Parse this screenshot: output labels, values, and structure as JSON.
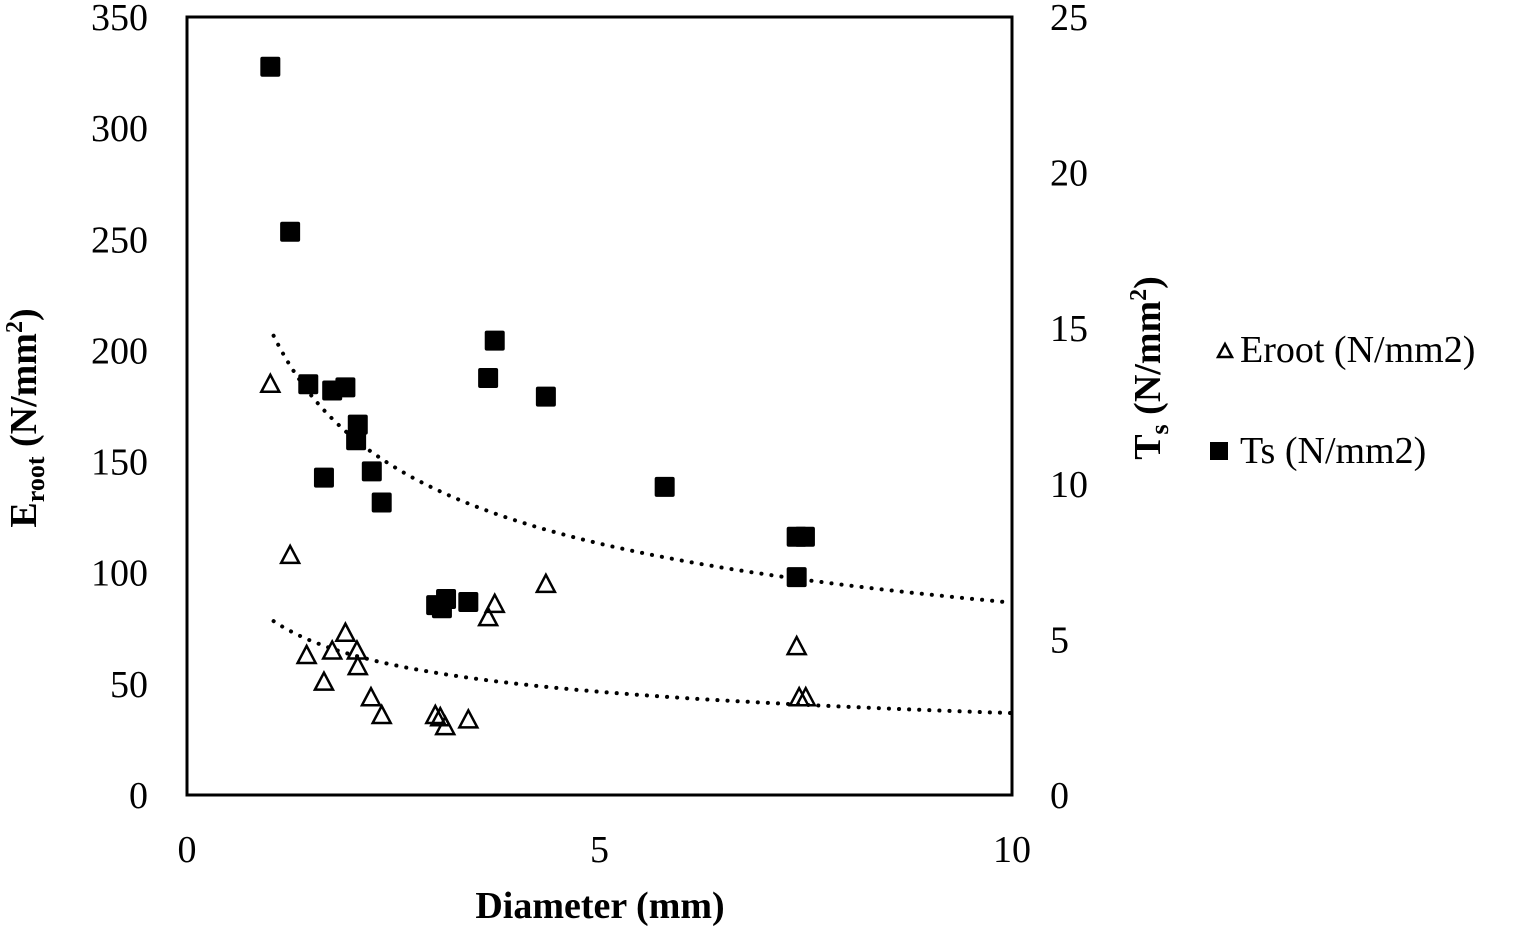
{
  "chart_data": {
    "type": "scatter",
    "title": "",
    "xlabel": "Diameter (mm)",
    "ylabel_left": {
      "main": "E",
      "sub": "root",
      "unit": " (N/mm",
      "sup": "2",
      "close": ")"
    },
    "ylabel_right": {
      "main": "T",
      "sub": "s",
      "unit": " (N/mm",
      "sup": "2",
      "close": ")"
    },
    "xlim": [
      0,
      10
    ],
    "ylim_left": [
      0,
      350
    ],
    "ylim_right": [
      0,
      25
    ],
    "x_ticks": [
      "0",
      "5",
      "10"
    ],
    "y_left_ticks": [
      "0",
      "50",
      "100",
      "150",
      "200",
      "250",
      "300",
      "350"
    ],
    "y_right_ticks": [
      "0",
      "5",
      "10",
      "15",
      "20",
      "25"
    ],
    "grid": false,
    "legend_position": "right",
    "series": [
      {
        "name": "Eroot (N/mm2)",
        "axis": "left",
        "marker": "open-triangle",
        "x": [
          1.01,
          1.25,
          1.45,
          1.66,
          1.76,
          1.92,
          2.06,
          2.07,
          2.23,
          2.36,
          3.01,
          3.07,
          3.13,
          3.41,
          3.65,
          3.73,
          4.35,
          7.39,
          7.42,
          7.5
        ],
        "y": [
          185,
          108,
          63,
          51,
          65,
          73,
          65,
          58,
          44,
          36,
          36,
          35,
          31,
          34,
          80,
          86,
          95,
          67,
          44,
          44
        ],
        "trendline": {
          "type": "power",
          "a": 79.5,
          "b": -0.334,
          "x_range": [
            1.05,
            10
          ]
        }
      },
      {
        "name": "Ts (N/mm2)",
        "axis": "right",
        "marker": "filled-square",
        "x": [
          1.01,
          1.25,
          1.47,
          1.76,
          1.92,
          2.07,
          2.05,
          1.66,
          2.24,
          2.36,
          3.02,
          3.14,
          3.09,
          3.41,
          3.65,
          3.73,
          4.35,
          5.79,
          7.39,
          7.49,
          7.39
        ],
        "y": [
          23.4,
          18.1,
          13.2,
          13.0,
          13.1,
          11.9,
          11.4,
          10.2,
          10.4,
          9.4,
          6.1,
          6.3,
          6.0,
          6.2,
          13.4,
          14.6,
          12.8,
          9.9,
          8.3,
          8.3,
          7.0
        ],
        "trendline": {
          "type": "power",
          "a": 15.04,
          "b": -0.386,
          "x_range": [
            1.05,
            10
          ]
        }
      }
    ]
  }
}
